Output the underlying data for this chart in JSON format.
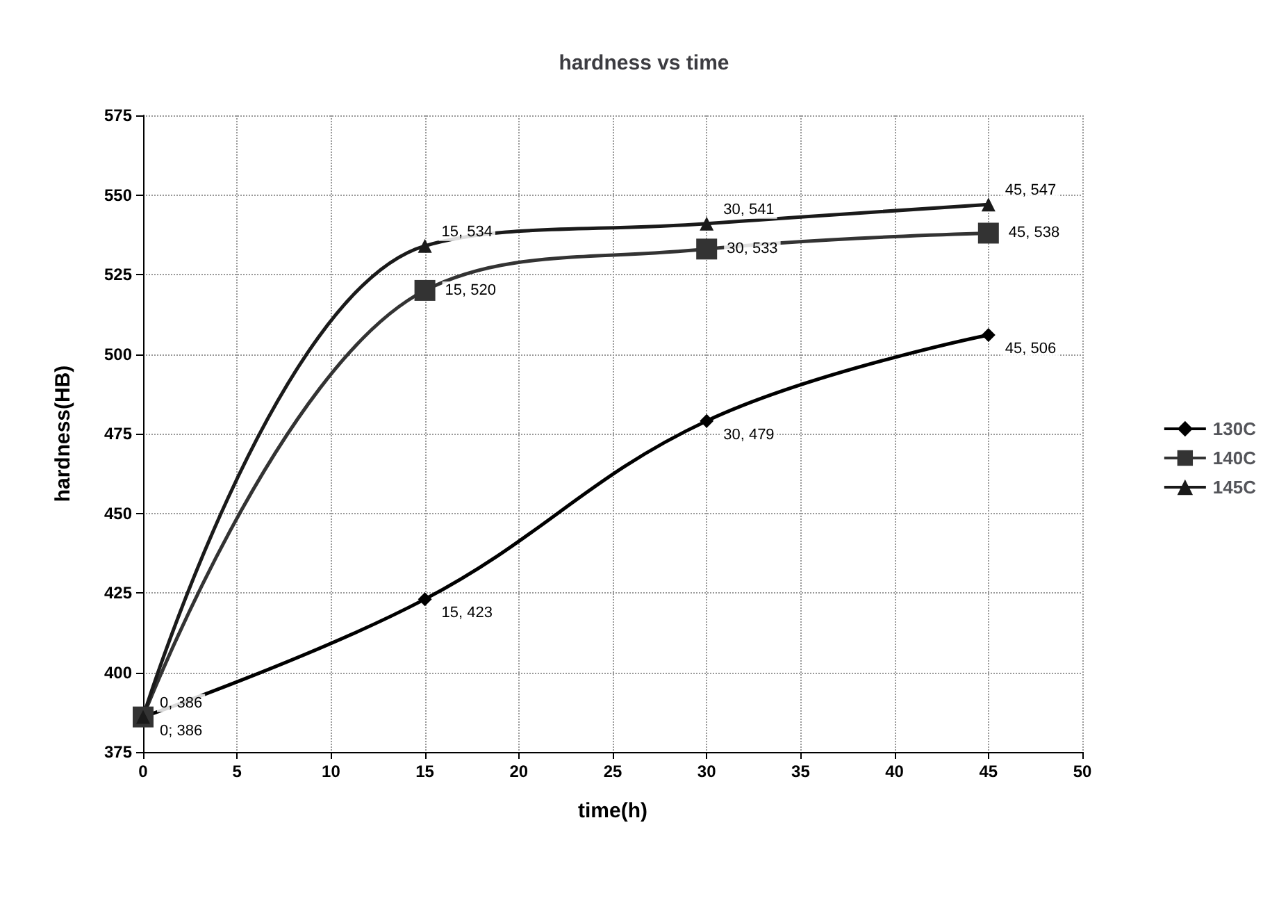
{
  "chart_data": {
    "type": "line",
    "title": "hardness vs time",
    "xlabel": "time(h)",
    "ylabel": "hardness(HB)",
    "x": [
      0,
      15,
      30,
      45
    ],
    "xlim": [
      0,
      50
    ],
    "xticks": [
      0,
      5,
      10,
      15,
      20,
      25,
      30,
      35,
      40,
      45,
      50
    ],
    "ylim": [
      375,
      575
    ],
    "yticks": [
      375,
      400,
      425,
      450,
      475,
      500,
      525,
      550,
      575
    ],
    "grid": true,
    "legend": "right",
    "series": [
      {
        "name": "130C",
        "color": "#000000",
        "marker": "diamond",
        "values": [
          386,
          423,
          479,
          506
        ],
        "value_labels": [
          "0; 386",
          "15, 423",
          "30, 479",
          "45, 506"
        ]
      },
      {
        "name": "140C",
        "color": "#333333",
        "marker": "square",
        "values": [
          386,
          520,
          533,
          538
        ],
        "value_labels": [
          null,
          "15, 520",
          "30, 533",
          "45, 538"
        ]
      },
      {
        "name": "145C",
        "color": "#1a1a1a",
        "marker": "triangle",
        "values": [
          386,
          534,
          541,
          547
        ],
        "value_labels": [
          "0, 386",
          "15, 534",
          "30, 541",
          "45, 547"
        ]
      }
    ]
  }
}
